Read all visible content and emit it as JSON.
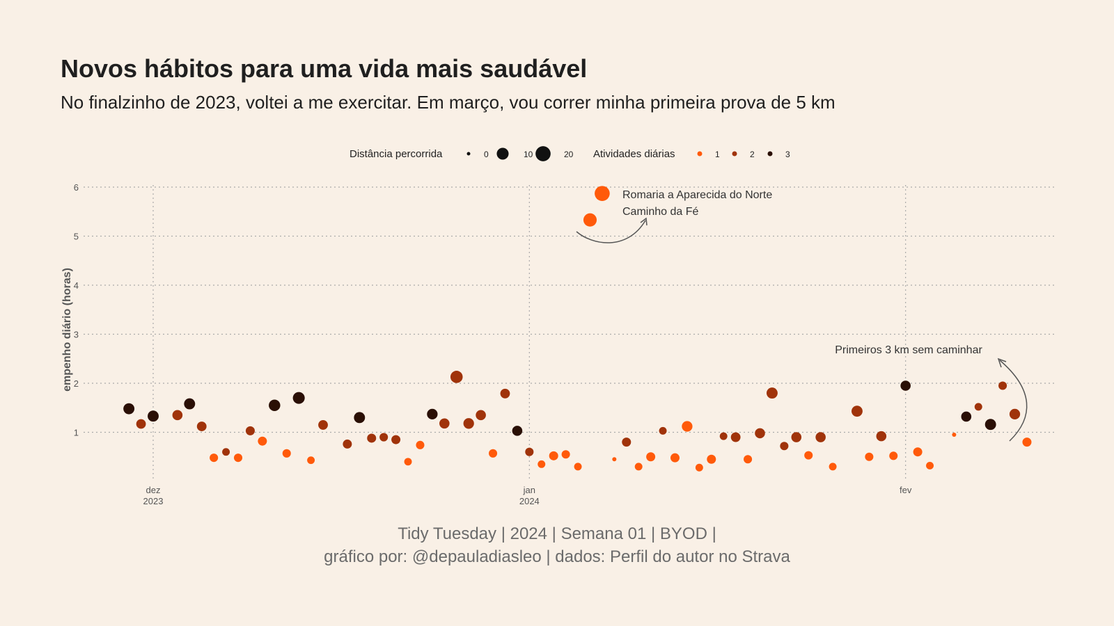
{
  "title": "Novos hábitos para uma vida mais saudável",
  "subtitle": "No finalzinho de 2023, voltei a me exercitar. Em março, vou correr minha primeira prova de 5 km",
  "caption": {
    "line1": "Tidy Tuesday | 2024 | Semana 01 | BYOD |",
    "line2": "gráfico por: @depauladiasleo | dados: Perfil do autor no Strava"
  },
  "colors": {
    "background": "#f9f0e6",
    "grid": "#aaaaaa",
    "activities_1": "#ff5a0a",
    "activities_2": "#a0330a",
    "activities_3": "#2a0f05"
  },
  "chart_data": {
    "type": "scatter",
    "ylabel": "empenho diário (horas)",
    "xlabel": "",
    "ylim": [
      0,
      6
    ],
    "xlim": [
      "2023-11-19",
      "2024-02-16"
    ],
    "y_ticks": [
      "1",
      "2",
      "3",
      "4",
      "5",
      "6"
    ],
    "x_ticks": [
      {
        "date": "2023-12-01",
        "label1": "dez",
        "label2": "2023"
      },
      {
        "date": "2024-01-01",
        "label1": "jan",
        "label2": "2024"
      },
      {
        "date": "2024-02-01",
        "label1": "fev",
        "label2": ""
      }
    ],
    "grid": true,
    "legend": {
      "size_title": "Distância percorrida",
      "size_entries": [
        {
          "label": "0",
          "value": 0
        },
        {
          "label": "10",
          "value": 10
        },
        {
          "label": "20",
          "value": 20
        }
      ],
      "color_title": "Atividades diárias",
      "color_entries": [
        {
          "label": "1",
          "value": 1
        },
        {
          "label": "2",
          "value": 2
        },
        {
          "label": "3",
          "value": 3
        }
      ],
      "position": "top"
    },
    "annotations": [
      {
        "text": "Romaria a Aparecida do Norte"
      },
      {
        "text": "Caminho da Fé"
      },
      {
        "text": "Primeiros 3 km sem caminhar"
      }
    ],
    "points": [
      {
        "date": "2023-11-29",
        "hours": 1.48,
        "activities": 3,
        "distance": 8
      },
      {
        "date": "2023-11-30",
        "hours": 1.17,
        "activities": 2,
        "distance": 5
      },
      {
        "date": "2023-12-01",
        "hours": 1.33,
        "activities": 3,
        "distance": 8
      },
      {
        "date": "2023-12-03",
        "hours": 1.35,
        "activities": 2,
        "distance": 6
      },
      {
        "date": "2023-12-04",
        "hours": 1.58,
        "activities": 3,
        "distance": 8
      },
      {
        "date": "2023-12-05",
        "hours": 1.12,
        "activities": 2,
        "distance": 5
      },
      {
        "date": "2023-12-06",
        "hours": 0.48,
        "activities": 1,
        "distance": 3
      },
      {
        "date": "2023-12-07",
        "hours": 0.6,
        "activities": 2,
        "distance": 2
      },
      {
        "date": "2023-12-08",
        "hours": 0.48,
        "activities": 1,
        "distance": 3
      },
      {
        "date": "2023-12-09",
        "hours": 1.03,
        "activities": 2,
        "distance": 4
      },
      {
        "date": "2023-12-10",
        "hours": 0.82,
        "activities": 1,
        "distance": 4
      },
      {
        "date": "2023-12-11",
        "hours": 1.55,
        "activities": 3,
        "distance": 9
      },
      {
        "date": "2023-12-12",
        "hours": 0.57,
        "activities": 1,
        "distance": 3
      },
      {
        "date": "2023-12-13",
        "hours": 1.7,
        "activities": 3,
        "distance": 10
      },
      {
        "date": "2023-12-14",
        "hours": 0.43,
        "activities": 1,
        "distance": 2
      },
      {
        "date": "2023-12-15",
        "hours": 1.15,
        "activities": 2,
        "distance": 5
      },
      {
        "date": "2023-12-17",
        "hours": 0.76,
        "activities": 2,
        "distance": 4
      },
      {
        "date": "2023-12-18",
        "hours": 1.3,
        "activities": 3,
        "distance": 8
      },
      {
        "date": "2023-12-19",
        "hours": 0.88,
        "activities": 2,
        "distance": 4
      },
      {
        "date": "2023-12-20",
        "hours": 0.9,
        "activities": 2,
        "distance": 3
      },
      {
        "date": "2023-12-21",
        "hours": 0.85,
        "activities": 2,
        "distance": 4
      },
      {
        "date": "2023-12-22",
        "hours": 0.4,
        "activities": 1,
        "distance": 2
      },
      {
        "date": "2023-12-23",
        "hours": 0.74,
        "activities": 1,
        "distance": 3
      },
      {
        "date": "2023-12-24",
        "hours": 1.37,
        "activities": 3,
        "distance": 7
      },
      {
        "date": "2023-12-25",
        "hours": 1.18,
        "activities": 2,
        "distance": 6
      },
      {
        "date": "2023-12-26",
        "hours": 2.13,
        "activities": 2,
        "distance": 11
      },
      {
        "date": "2023-12-27",
        "hours": 1.18,
        "activities": 2,
        "distance": 7
      },
      {
        "date": "2023-12-28",
        "hours": 1.35,
        "activities": 2,
        "distance": 6
      },
      {
        "date": "2023-12-29",
        "hours": 0.57,
        "activities": 1,
        "distance": 3
      },
      {
        "date": "2023-12-30",
        "hours": 1.79,
        "activities": 2,
        "distance": 5
      },
      {
        "date": "2023-12-31",
        "hours": 1.03,
        "activities": 3,
        "distance": 6
      },
      {
        "date": "2024-01-01",
        "hours": 0.6,
        "activities": 2,
        "distance": 3
      },
      {
        "date": "2024-01-02",
        "hours": 0.35,
        "activities": 1,
        "distance": 2
      },
      {
        "date": "2024-01-03",
        "hours": 0.52,
        "activities": 1,
        "distance": 4
      },
      {
        "date": "2024-01-04",
        "hours": 0.55,
        "activities": 1,
        "distance": 3
      },
      {
        "date": "2024-01-05",
        "hours": 0.3,
        "activities": 1,
        "distance": 2
      },
      {
        "date": "2024-01-06",
        "hours": 5.33,
        "activities": 1,
        "distance": 14
      },
      {
        "date": "2024-01-07",
        "hours": 5.87,
        "activities": 1,
        "distance": 20
      },
      {
        "date": "2024-01-08",
        "hours": 0.45,
        "activities": 1,
        "distance": 0
      },
      {
        "date": "2024-01-09",
        "hours": 0.8,
        "activities": 2,
        "distance": 4
      },
      {
        "date": "2024-01-10",
        "hours": 0.3,
        "activities": 1,
        "distance": 2
      },
      {
        "date": "2024-01-11",
        "hours": 0.5,
        "activities": 1,
        "distance": 4
      },
      {
        "date": "2024-01-12",
        "hours": 1.03,
        "activities": 2,
        "distance": 2
      },
      {
        "date": "2024-01-13",
        "hours": 0.48,
        "activities": 1,
        "distance": 4
      },
      {
        "date": "2024-01-14",
        "hours": 1.12,
        "activities": 1,
        "distance": 7
      },
      {
        "date": "2024-01-15",
        "hours": 0.28,
        "activities": 1,
        "distance": 2
      },
      {
        "date": "2024-01-16",
        "hours": 0.45,
        "activities": 1,
        "distance": 4
      },
      {
        "date": "2024-01-17",
        "hours": 0.92,
        "activities": 2,
        "distance": 2
      },
      {
        "date": "2024-01-18",
        "hours": 0.9,
        "activities": 2,
        "distance": 5
      },
      {
        "date": "2024-01-19",
        "hours": 0.45,
        "activities": 1,
        "distance": 3
      },
      {
        "date": "2024-01-20",
        "hours": 0.98,
        "activities": 2,
        "distance": 6
      },
      {
        "date": "2024-01-21",
        "hours": 1.8,
        "activities": 2,
        "distance": 8
      },
      {
        "date": "2024-01-22",
        "hours": 0.72,
        "activities": 2,
        "distance": 3
      },
      {
        "date": "2024-01-23",
        "hours": 0.9,
        "activities": 2,
        "distance": 6
      },
      {
        "date": "2024-01-24",
        "hours": 0.53,
        "activities": 1,
        "distance": 3
      },
      {
        "date": "2024-01-25",
        "hours": 0.9,
        "activities": 2,
        "distance": 6
      },
      {
        "date": "2024-01-26",
        "hours": 0.3,
        "activities": 1,
        "distance": 2
      },
      {
        "date": "2024-01-28",
        "hours": 1.43,
        "activities": 2,
        "distance": 8
      },
      {
        "date": "2024-01-29",
        "hours": 0.5,
        "activities": 1,
        "distance": 3
      },
      {
        "date": "2024-01-30",
        "hours": 0.92,
        "activities": 2,
        "distance": 6
      },
      {
        "date": "2024-01-31",
        "hours": 0.52,
        "activities": 1,
        "distance": 3
      },
      {
        "date": "2024-02-01",
        "hours": 1.95,
        "activities": 3,
        "distance": 6
      },
      {
        "date": "2024-02-02",
        "hours": 0.6,
        "activities": 1,
        "distance": 4
      },
      {
        "date": "2024-02-03",
        "hours": 0.32,
        "activities": 1,
        "distance": 2
      },
      {
        "date": "2024-02-05",
        "hours": 0.95,
        "activities": 1,
        "distance": 0
      },
      {
        "date": "2024-02-06",
        "hours": 1.32,
        "activities": 3,
        "distance": 6
      },
      {
        "date": "2024-02-07",
        "hours": 1.52,
        "activities": 2,
        "distance": 2
      },
      {
        "date": "2024-02-08",
        "hours": 1.16,
        "activities": 3,
        "distance": 8
      },
      {
        "date": "2024-02-09",
        "hours": 1.95,
        "activities": 2,
        "distance": 3
      },
      {
        "date": "2024-02-10",
        "hours": 1.37,
        "activities": 2,
        "distance": 7
      },
      {
        "date": "2024-02-11",
        "hours": 0.8,
        "activities": 1,
        "distance": 4
      }
    ]
  }
}
